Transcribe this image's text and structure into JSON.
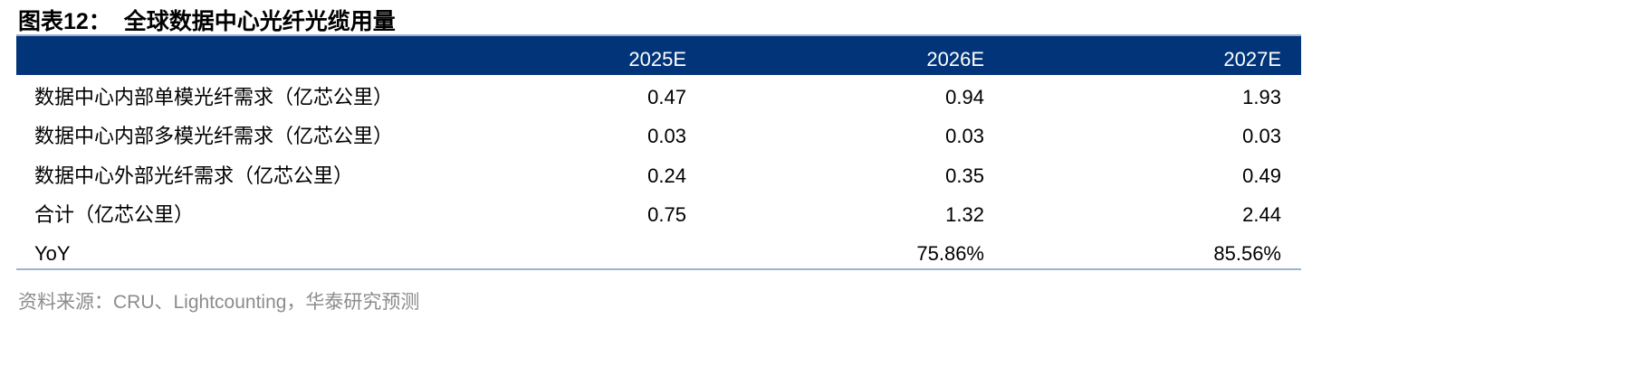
{
  "header": {
    "title": "图表12：  全球数据中心光纤光缆用量"
  },
  "table": {
    "columns": [
      "2025E",
      "2026E",
      "2027E"
    ],
    "rows": [
      {
        "label": "数据中心内部单模光纤需求（亿芯公里）",
        "cells": [
          "0.47",
          "0.94",
          "1.93"
        ]
      },
      {
        "label": "数据中心内部多模光纤需求（亿芯公里）",
        "cells": [
          "0.03",
          "0.03",
          "0.03"
        ]
      },
      {
        "label": "数据中心外部光纤需求（亿芯公里）",
        "cells": [
          "0.24",
          "0.35",
          "0.49"
        ]
      },
      {
        "label": "合计（亿芯公里）",
        "cells": [
          "0.75",
          "1.32",
          "2.44"
        ]
      },
      {
        "label": "YoY",
        "cells": [
          null,
          "75.86%",
          "85.56%"
        ]
      }
    ]
  },
  "footer": {
    "source": "资料来源：CRU、Lightcounting，华泰研究预测"
  }
}
